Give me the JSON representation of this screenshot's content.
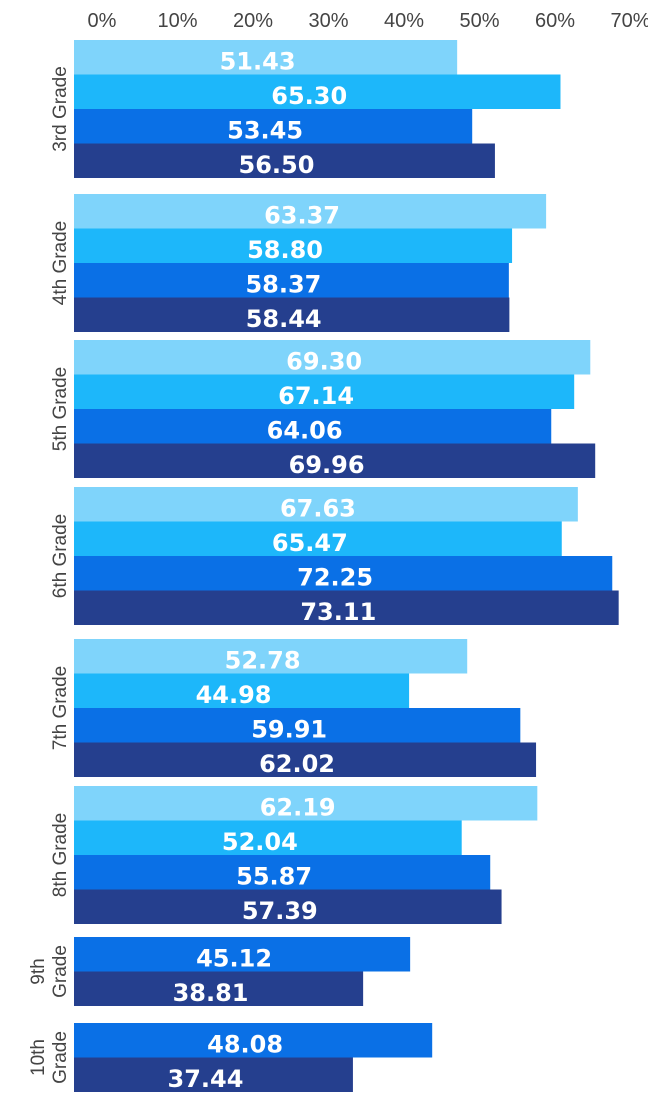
{
  "chart_data": {
    "type": "bar",
    "orientation": "horizontal",
    "categories": [
      "3rd Grade",
      "4th Grade",
      "5th Grade",
      "6th Grade",
      "7th Grade",
      "8th Grade",
      "9th Grade",
      "10th Grade"
    ],
    "category_lines": [
      [
        "3rd Grade"
      ],
      [
        "4th Grade"
      ],
      [
        "5th Grade"
      ],
      [
        "6th Grade"
      ],
      [
        "7th Grade"
      ],
      [
        "8th Grade"
      ],
      [
        "9th",
        "Grade"
      ],
      [
        "10th",
        "Grade"
      ]
    ],
    "series": [
      {
        "color": "#7fd4fb",
        "values": [
          51.43,
          63.37,
          69.3,
          67.63,
          52.78,
          62.19,
          null,
          null
        ]
      },
      {
        "color": "#1db7fa",
        "values": [
          65.3,
          58.8,
          67.14,
          65.47,
          44.98,
          52.04,
          null,
          null
        ]
      },
      {
        "color": "#0a70e6",
        "values": [
          53.45,
          58.37,
          64.06,
          72.25,
          59.91,
          55.87,
          45.12,
          48.08
        ]
      },
      {
        "color": "#253f8e",
        "values": [
          56.5,
          58.44,
          69.96,
          73.11,
          62.02,
          57.39,
          38.81,
          37.44
        ]
      }
    ],
    "x_ticks": [
      "0%",
      "10%",
      "20%",
      "30%",
      "40%",
      "50%",
      "60%",
      "70%"
    ],
    "xlim": [
      0,
      70
    ],
    "axis_position": "top",
    "grid": false,
    "legend": "none",
    "label_format": "two-decimal",
    "title": "",
    "xlabel": "",
    "ylabel": ""
  }
}
